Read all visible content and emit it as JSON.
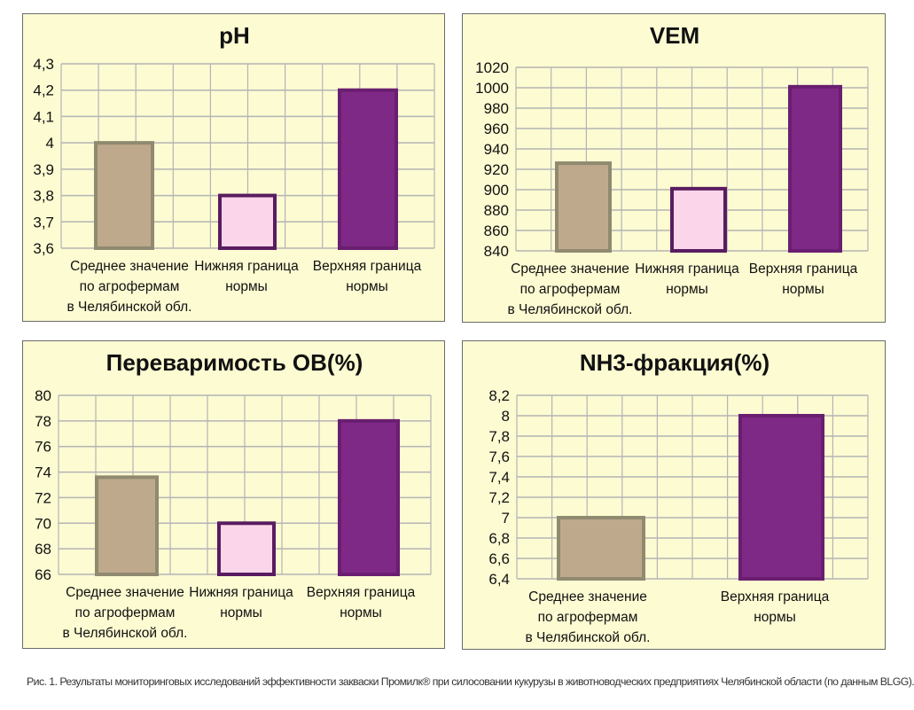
{
  "chart_data": [
    {
      "type": "bar",
      "title": "pH",
      "categories": [
        [
          "Среднее значение",
          "по агрофермам",
          "в Челябинской обл."
        ],
        [
          "Нижняя граница",
          "нормы"
        ],
        [
          "Верхняя граница",
          "нормы"
        ]
      ],
      "values": [
        4.0,
        3.8,
        4.2
      ],
      "ylim": [
        3.6,
        4.3
      ],
      "yticks": [
        "3,6",
        "3,7",
        "3,8",
        "3,9",
        "4",
        "4,1",
        "4,2",
        "4,3"
      ],
      "grid": true
    },
    {
      "type": "bar",
      "title": "VEM",
      "categories": [
        [
          "Среднее значение",
          "по агрофермам",
          "в Челябинской обл."
        ],
        [
          "Нижняя граница",
          "нормы"
        ],
        [
          "Верхняя граница",
          "нормы"
        ]
      ],
      "values": [
        926,
        901,
        1001
      ],
      "ylim": [
        840,
        1020
      ],
      "yticks": [
        "840",
        "860",
        "880",
        "900",
        "920",
        "940",
        "960",
        "980",
        "1000",
        "1020"
      ],
      "grid": true
    },
    {
      "type": "bar",
      "title": "Переваримость ОВ(%)",
      "categories": [
        [
          "Среднее значение",
          "по агрофермам",
          "в Челябинской обл."
        ],
        [
          "Нижняя граница",
          "нормы"
        ],
        [
          "Верхняя граница",
          "нормы"
        ]
      ],
      "values": [
        73.6,
        70,
        78
      ],
      "ylim": [
        66,
        80
      ],
      "yticks": [
        "66",
        "68",
        "70",
        "72",
        "74",
        "76",
        "78",
        "80"
      ],
      "grid": true
    },
    {
      "type": "bar",
      "title": "NH3-фракция(%)",
      "categories": [
        [
          "Среднее значение",
          "по агрофермам",
          "в Челябинской обл."
        ],
        [
          "Верхняя граница",
          "нормы"
        ]
      ],
      "values": [
        7.0,
        8.0
      ],
      "ylim": [
        6.4,
        8.2
      ],
      "yticks": [
        "6,4",
        "6,6",
        "6,8",
        "7",
        "7,2",
        "7,4",
        "7,6",
        "7,8",
        "8",
        "8,2"
      ],
      "grid": true
    }
  ],
  "colors": {
    "panel_bg": "#fdfbd2",
    "grid": "#b4b4b4",
    "avg_fill": "#bfa98c",
    "avg_stroke": "#8f8a70",
    "low_fill": "#fbd6ea",
    "low_stroke": "#5a1c60",
    "high_fill": "#7f2987",
    "high_stroke": "#6a1e70"
  },
  "caption": "Рис. 1. Результаты мониторинговых исследований эффективности закваски Промилк® при силосовании кукурузы в животноводческих предприятиях Челябинской области (по данным BLGG)."
}
